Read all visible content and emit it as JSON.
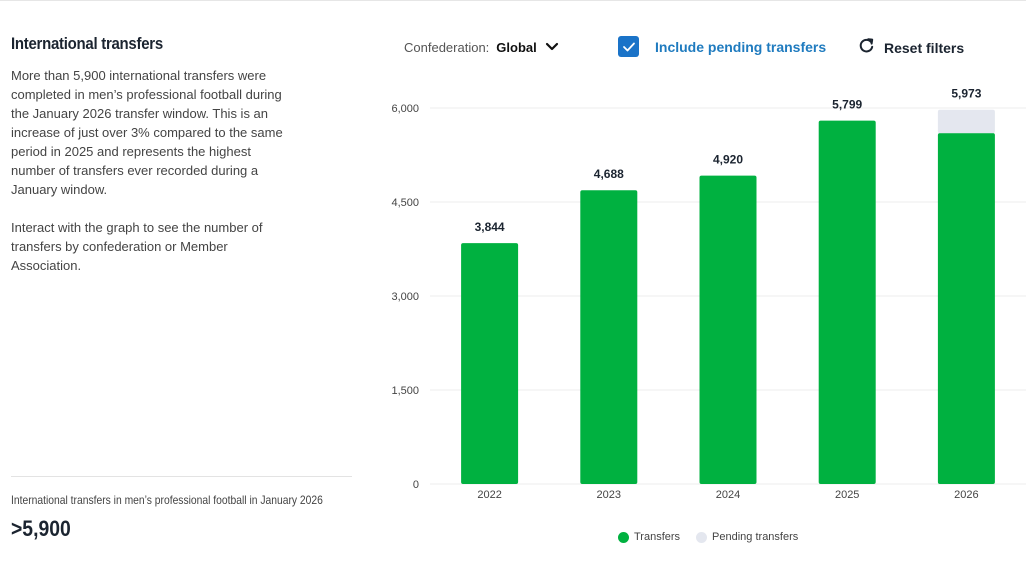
{
  "left_panel": {
    "title": "International transfers",
    "paragraph_1": "More than 5,900 international transfers were completed in men’s professional football during the January 2026 transfer window. This is an increase of just over 3% compared to the same period in 2025 and represents the highest number of transfers ever recorded during a January window.",
    "paragraph_2": "Interact with the graph to see the number of transfers by confederation or Member Association.",
    "stat_label": "International transfers in men’s professional football in January 2026",
    "stat_value": ">5,900"
  },
  "controls": {
    "confederation_label": "Confederation:",
    "confederation_value": "Global",
    "pending_label": "Include pending transfers",
    "pending_checked": true,
    "reset_label": "Reset filters"
  },
  "colors": {
    "transfers": "#00b140",
    "pending": "#e4e7ef",
    "accent": "#1a73c8"
  },
  "icons": {
    "dropdown": "chevron-down-icon",
    "checkbox": "checkmark-icon",
    "reset": "refresh-icon"
  },
  "chart_data": {
    "type": "bar",
    "stacked": true,
    "categories": [
      "2022",
      "2023",
      "2024",
      "2025",
      "2026"
    ],
    "series": [
      {
        "name": "Transfers",
        "values": [
          3844,
          4688,
          4920,
          5799,
          5600
        ]
      },
      {
        "name": "Pending transfers",
        "values": [
          0,
          0,
          0,
          0,
          373
        ]
      }
    ],
    "totals": [
      3844,
      4688,
      4920,
      5799,
      5973
    ],
    "total_labels": [
      "3,844",
      "4,688",
      "4,920",
      "5,799",
      "5,973"
    ],
    "y_ticks": [
      0,
      1500,
      3000,
      4500,
      6000
    ],
    "y_tick_labels": [
      "0",
      "1,500",
      "3,000",
      "4,500",
      "6,000"
    ],
    "ylim": [
      0,
      6000
    ],
    "grid": true,
    "legend": [
      "Transfers",
      "Pending transfers"
    ],
    "legend_position": "bottom-center"
  }
}
